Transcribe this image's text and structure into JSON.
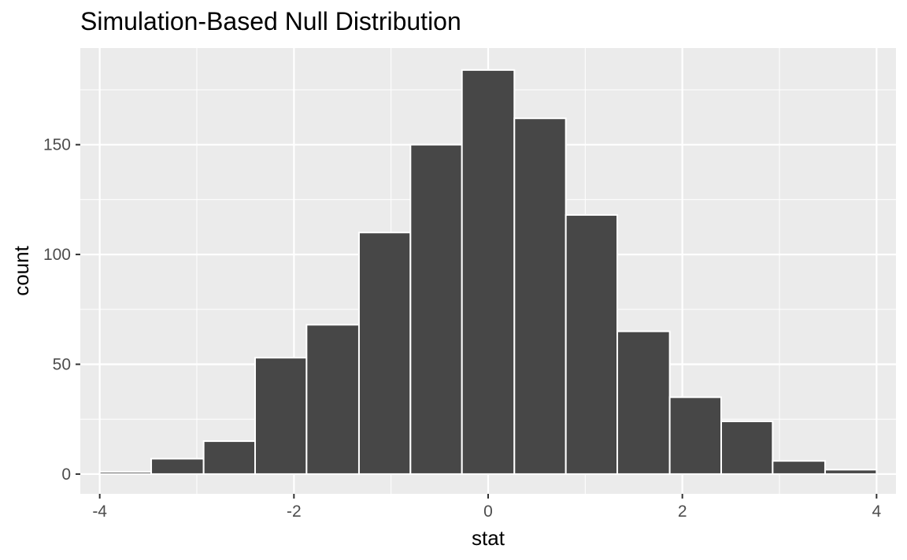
{
  "chart_data": {
    "type": "bar",
    "title": "Simulation-Based Null Distribution",
    "xlabel": "stat",
    "ylabel": "count",
    "xlim": [
      -4.2,
      4.2
    ],
    "ylim": [
      -9,
      194
    ],
    "x_ticks": [
      -4,
      -2,
      0,
      2,
      4
    ],
    "x_tick_labels": [
      "-4",
      "-2",
      "0",
      "2",
      "4"
    ],
    "y_ticks": [
      0,
      50,
      100,
      150
    ],
    "y_tick_labels": [
      "0",
      "50",
      "100",
      "150"
    ],
    "x_minor_ticks": [
      -3,
      -1,
      1,
      3
    ],
    "y_minor_ticks": [
      25,
      75,
      125,
      175
    ],
    "grid": true,
    "legend": "none",
    "bins": [
      {
        "xmin": -4.0,
        "xmax": -3.47,
        "count": 1
      },
      {
        "xmin": -3.47,
        "xmax": -2.93,
        "count": 7
      },
      {
        "xmin": -2.93,
        "xmax": -2.4,
        "count": 15
      },
      {
        "xmin": -2.4,
        "xmax": -1.87,
        "count": 53
      },
      {
        "xmin": -1.87,
        "xmax": -1.33,
        "count": 68
      },
      {
        "xmin": -1.33,
        "xmax": -0.8,
        "count": 110
      },
      {
        "xmin": -0.8,
        "xmax": -0.27,
        "count": 150
      },
      {
        "xmin": -0.27,
        "xmax": 0.27,
        "count": 184
      },
      {
        "xmin": 0.27,
        "xmax": 0.8,
        "count": 162
      },
      {
        "xmin": 0.8,
        "xmax": 1.33,
        "count": 118
      },
      {
        "xmin": 1.33,
        "xmax": 1.87,
        "count": 65
      },
      {
        "xmin": 1.87,
        "xmax": 2.4,
        "count": 35
      },
      {
        "xmin": 2.4,
        "xmax": 2.93,
        "count": 24
      },
      {
        "xmin": 2.93,
        "xmax": 3.47,
        "count": 6
      },
      {
        "xmin": 3.47,
        "xmax": 4.0,
        "count": 2
      }
    ],
    "colors": {
      "panel_background": "#ebebeb",
      "grid": "#ffffff",
      "bar_fill": "#474747",
      "bar_outline": "#ffffff",
      "tick": "#333333"
    }
  }
}
